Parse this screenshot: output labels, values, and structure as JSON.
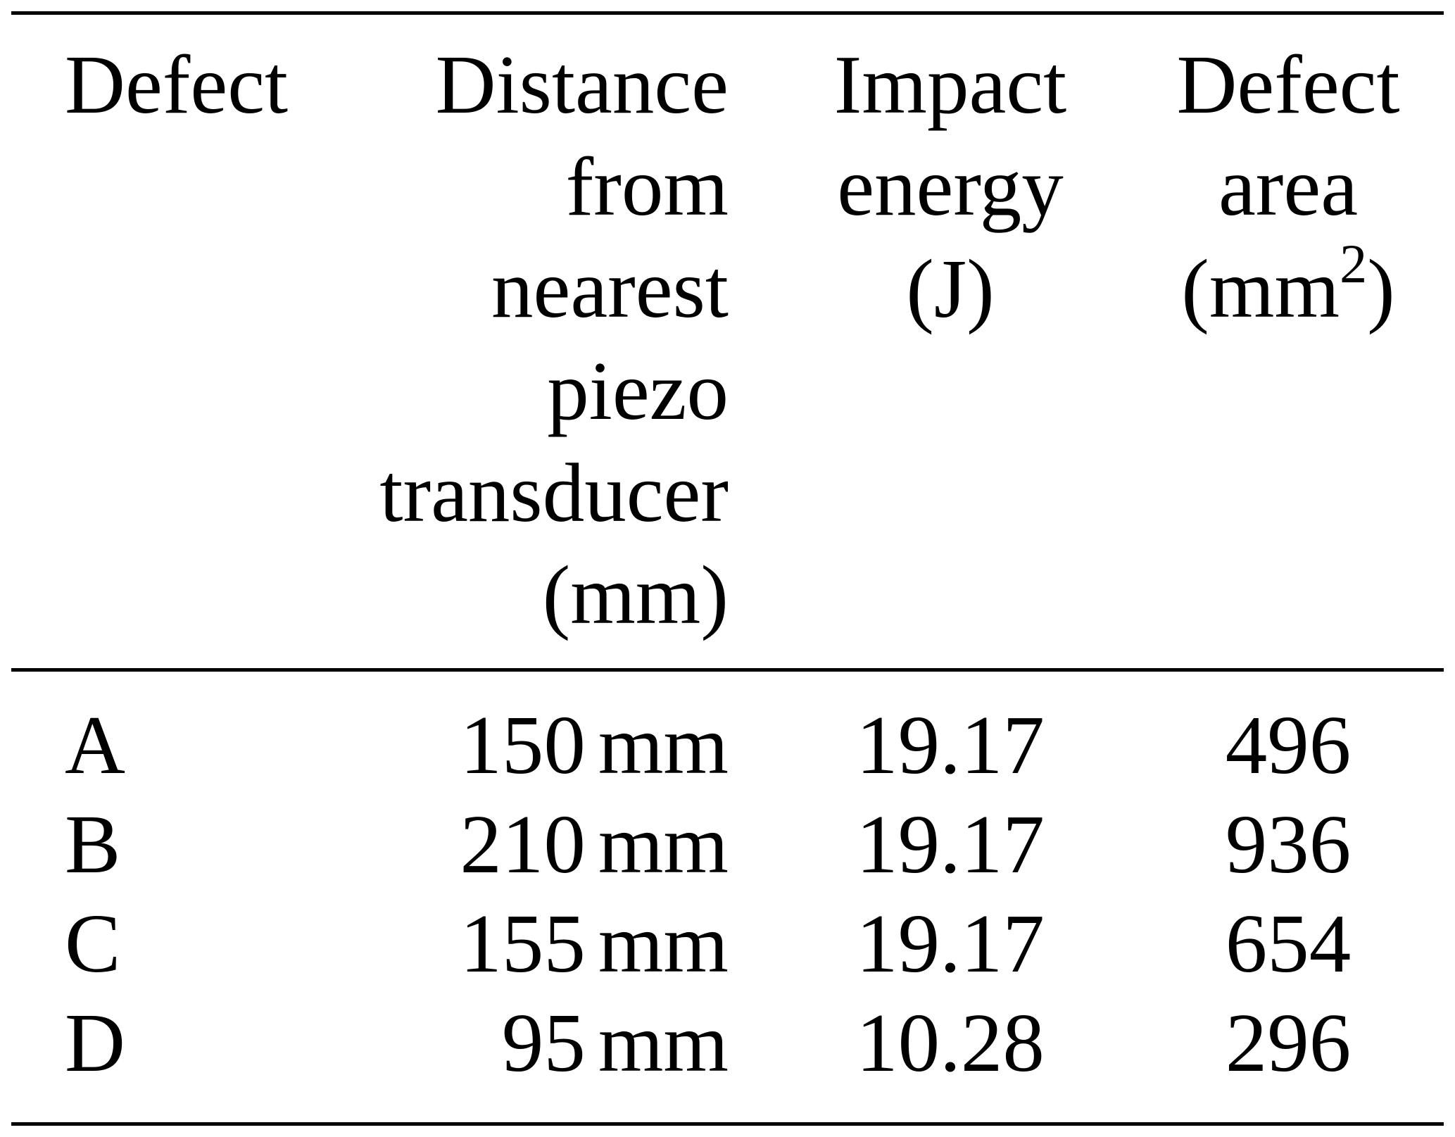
{
  "table": {
    "headers": {
      "defect": [
        "Defect"
      ],
      "distance": [
        "Distance",
        "from",
        "nearest",
        "piezo",
        "transducer",
        "(mm)"
      ],
      "impact": [
        "Impact",
        "energy",
        "(J)"
      ],
      "area": [
        "Defect",
        "area",
        "(mm",
        "2",
        ")"
      ]
    },
    "rows": [
      {
        "defect": "A",
        "distance_value": "150",
        "distance_unit": "mm",
        "impact_energy": "19.17",
        "defect_area": "496"
      },
      {
        "defect": "B",
        "distance_value": "210",
        "distance_unit": "mm",
        "impact_energy": "19.17",
        "defect_area": "936"
      },
      {
        "defect": "C",
        "distance_value": "155",
        "distance_unit": "mm",
        "impact_energy": "19.17",
        "defect_area": "654"
      },
      {
        "defect": "D",
        "distance_value": "95",
        "distance_unit": "mm",
        "impact_energy": "10.28",
        "defect_area": "296"
      }
    ]
  }
}
